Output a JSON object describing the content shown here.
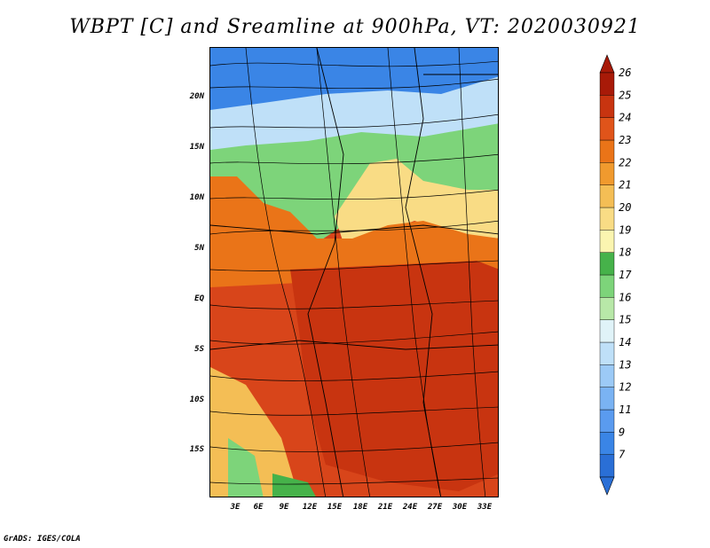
{
  "title": "WBPT [C] and Sreamline at 900hPa, VT: 2020030921",
  "footer": "GrADS: IGES/COLA",
  "latitude_labels": [
    "20N",
    "15N",
    "10N",
    "5N",
    "EQ",
    "5S",
    "10S",
    "15S"
  ],
  "longitude_labels": [
    "3E",
    "6E",
    "9E",
    "12E",
    "15E",
    "18E",
    "21E",
    "24E",
    "27E",
    "30E",
    "33E"
  ],
  "colorbar": {
    "labels": [
      "7",
      "9",
      "11",
      "12",
      "13",
      "14",
      "15",
      "16",
      "17",
      "18",
      "19",
      "20",
      "21",
      "22",
      "23",
      "24",
      "25",
      "26"
    ],
    "colors": [
      "#2a6fd6",
      "#3a85e6",
      "#5a9bef",
      "#7ab3f3",
      "#9ccaf6",
      "#bfe0f8",
      "#e0f3f8",
      "#b8e8a8",
      "#7dd47a",
      "#46b24a",
      "#fbf5b0",
      "#f9dc85",
      "#f4be55",
      "#f09a2e",
      "#ea7418",
      "#e0541a",
      "#c83410",
      "#a81a08"
    ]
  },
  "colors": {
    "cold": "#2a6fd6",
    "cool": "#bfe0f8",
    "mild_green": "#7dd47a",
    "warm_yellow": "#f9dc85",
    "hot_orange": "#ea7418",
    "very_hot_red": "#c83410"
  }
}
